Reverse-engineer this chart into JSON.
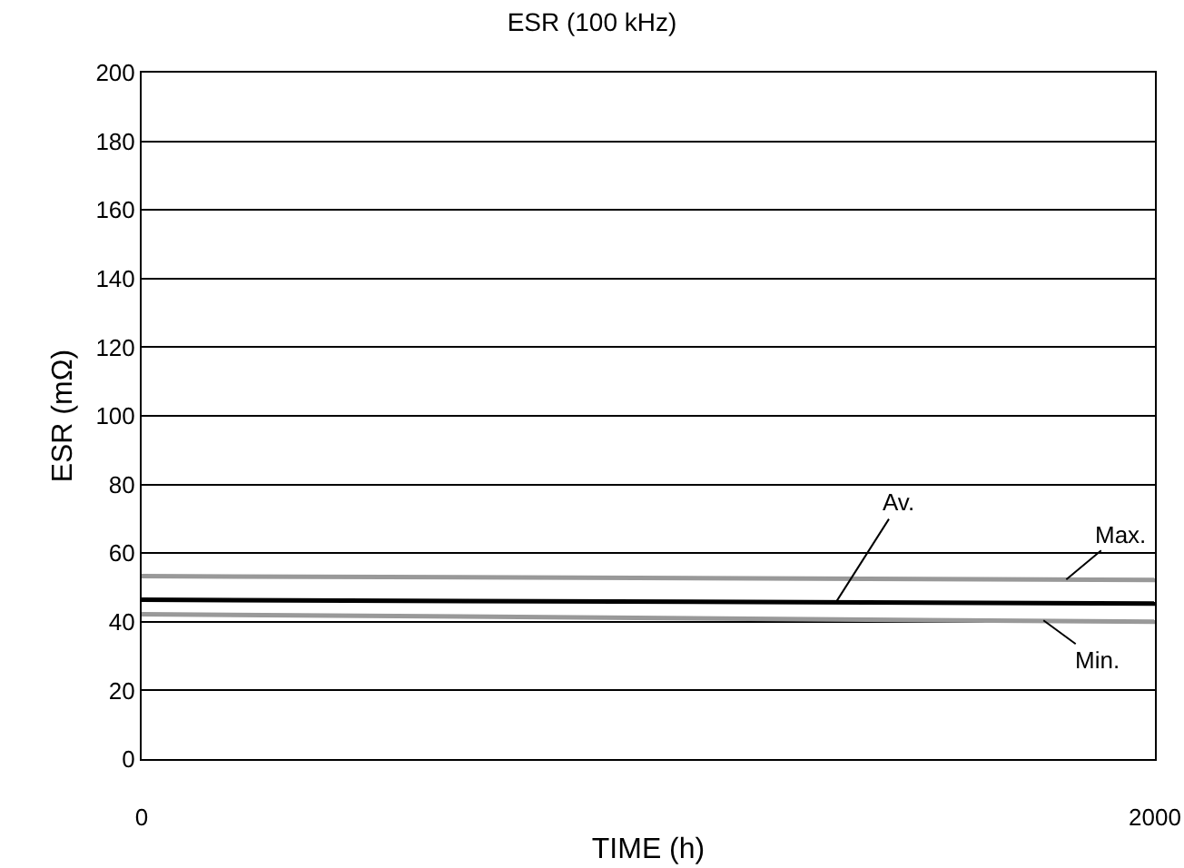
{
  "chart_data": {
    "type": "line",
    "title": "ESR (100 kHz)",
    "xlabel": "TIME (h)",
    "ylabel": "ESR (mΩ)",
    "x": [
      0,
      2000
    ],
    "series": [
      {
        "color": "#999999",
        "values": [
          53.3,
          52.2
        ]
      },
      {
        "color": "#000000",
        "values": [
          46.4,
          45.3
        ]
      },
      {
        "color": "#999999",
        "values": [
          42.2,
          40
        ]
      }
    ],
    "xlim": [
      0,
      2000
    ],
    "xticks": [
      0,
      2000
    ],
    "ylim": [
      0,
      200
    ],
    "yticks": [
      0,
      20,
      40,
      60,
      80,
      100,
      120,
      140,
      160,
      180,
      200
    ],
    "grid": "y",
    "marker": "none",
    "line_style": "solid",
    "annotations": [
      {
        "text": "Av.",
        "x": 1370,
        "y": 45.6
      },
      {
        "text": "Max.",
        "x": 1825,
        "y": 52.3
      },
      {
        "text": "Min.",
        "x": 1780,
        "y": 40.4
      }
    ]
  }
}
